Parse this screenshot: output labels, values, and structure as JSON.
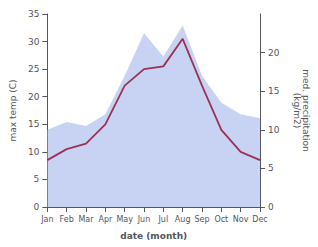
{
  "chart_data": {
    "type": "line",
    "xlabel": "date (month)",
    "ylabel": "max temp (C)",
    "y2label": "med. precipitation\n(kg/m2)",
    "categories": [
      "Jan",
      "Feb",
      "Mar",
      "Apr",
      "May",
      "Jun",
      "Jul",
      "Aug",
      "Sep",
      "Oct",
      "Nov",
      "Dec"
    ],
    "series": [
      {
        "type": "line",
        "color": "#993355",
        "values": [
          8.5,
          10.5,
          11.5,
          15.0,
          22.0,
          25.0,
          25.5,
          30.5,
          22.0,
          14.0,
          10.0,
          8.5
        ]
      },
      {
        "type": "area",
        "color": "#aabbee",
        "axis": "y2",
        "values": [
          10.0,
          11.0,
          10.5,
          12.0,
          17.0,
          22.5,
          19.5,
          23.5,
          17.0,
          13.5,
          12.0,
          11.5
        ]
      }
    ],
    "ylim": [
      0,
      35
    ],
    "yticks": [
      0,
      5,
      10,
      15,
      20,
      25,
      30,
      35
    ],
    "y2lim": [
      0,
      25
    ],
    "y2ticks": [
      0,
      5,
      10,
      15,
      20
    ],
    "grid": false
  }
}
